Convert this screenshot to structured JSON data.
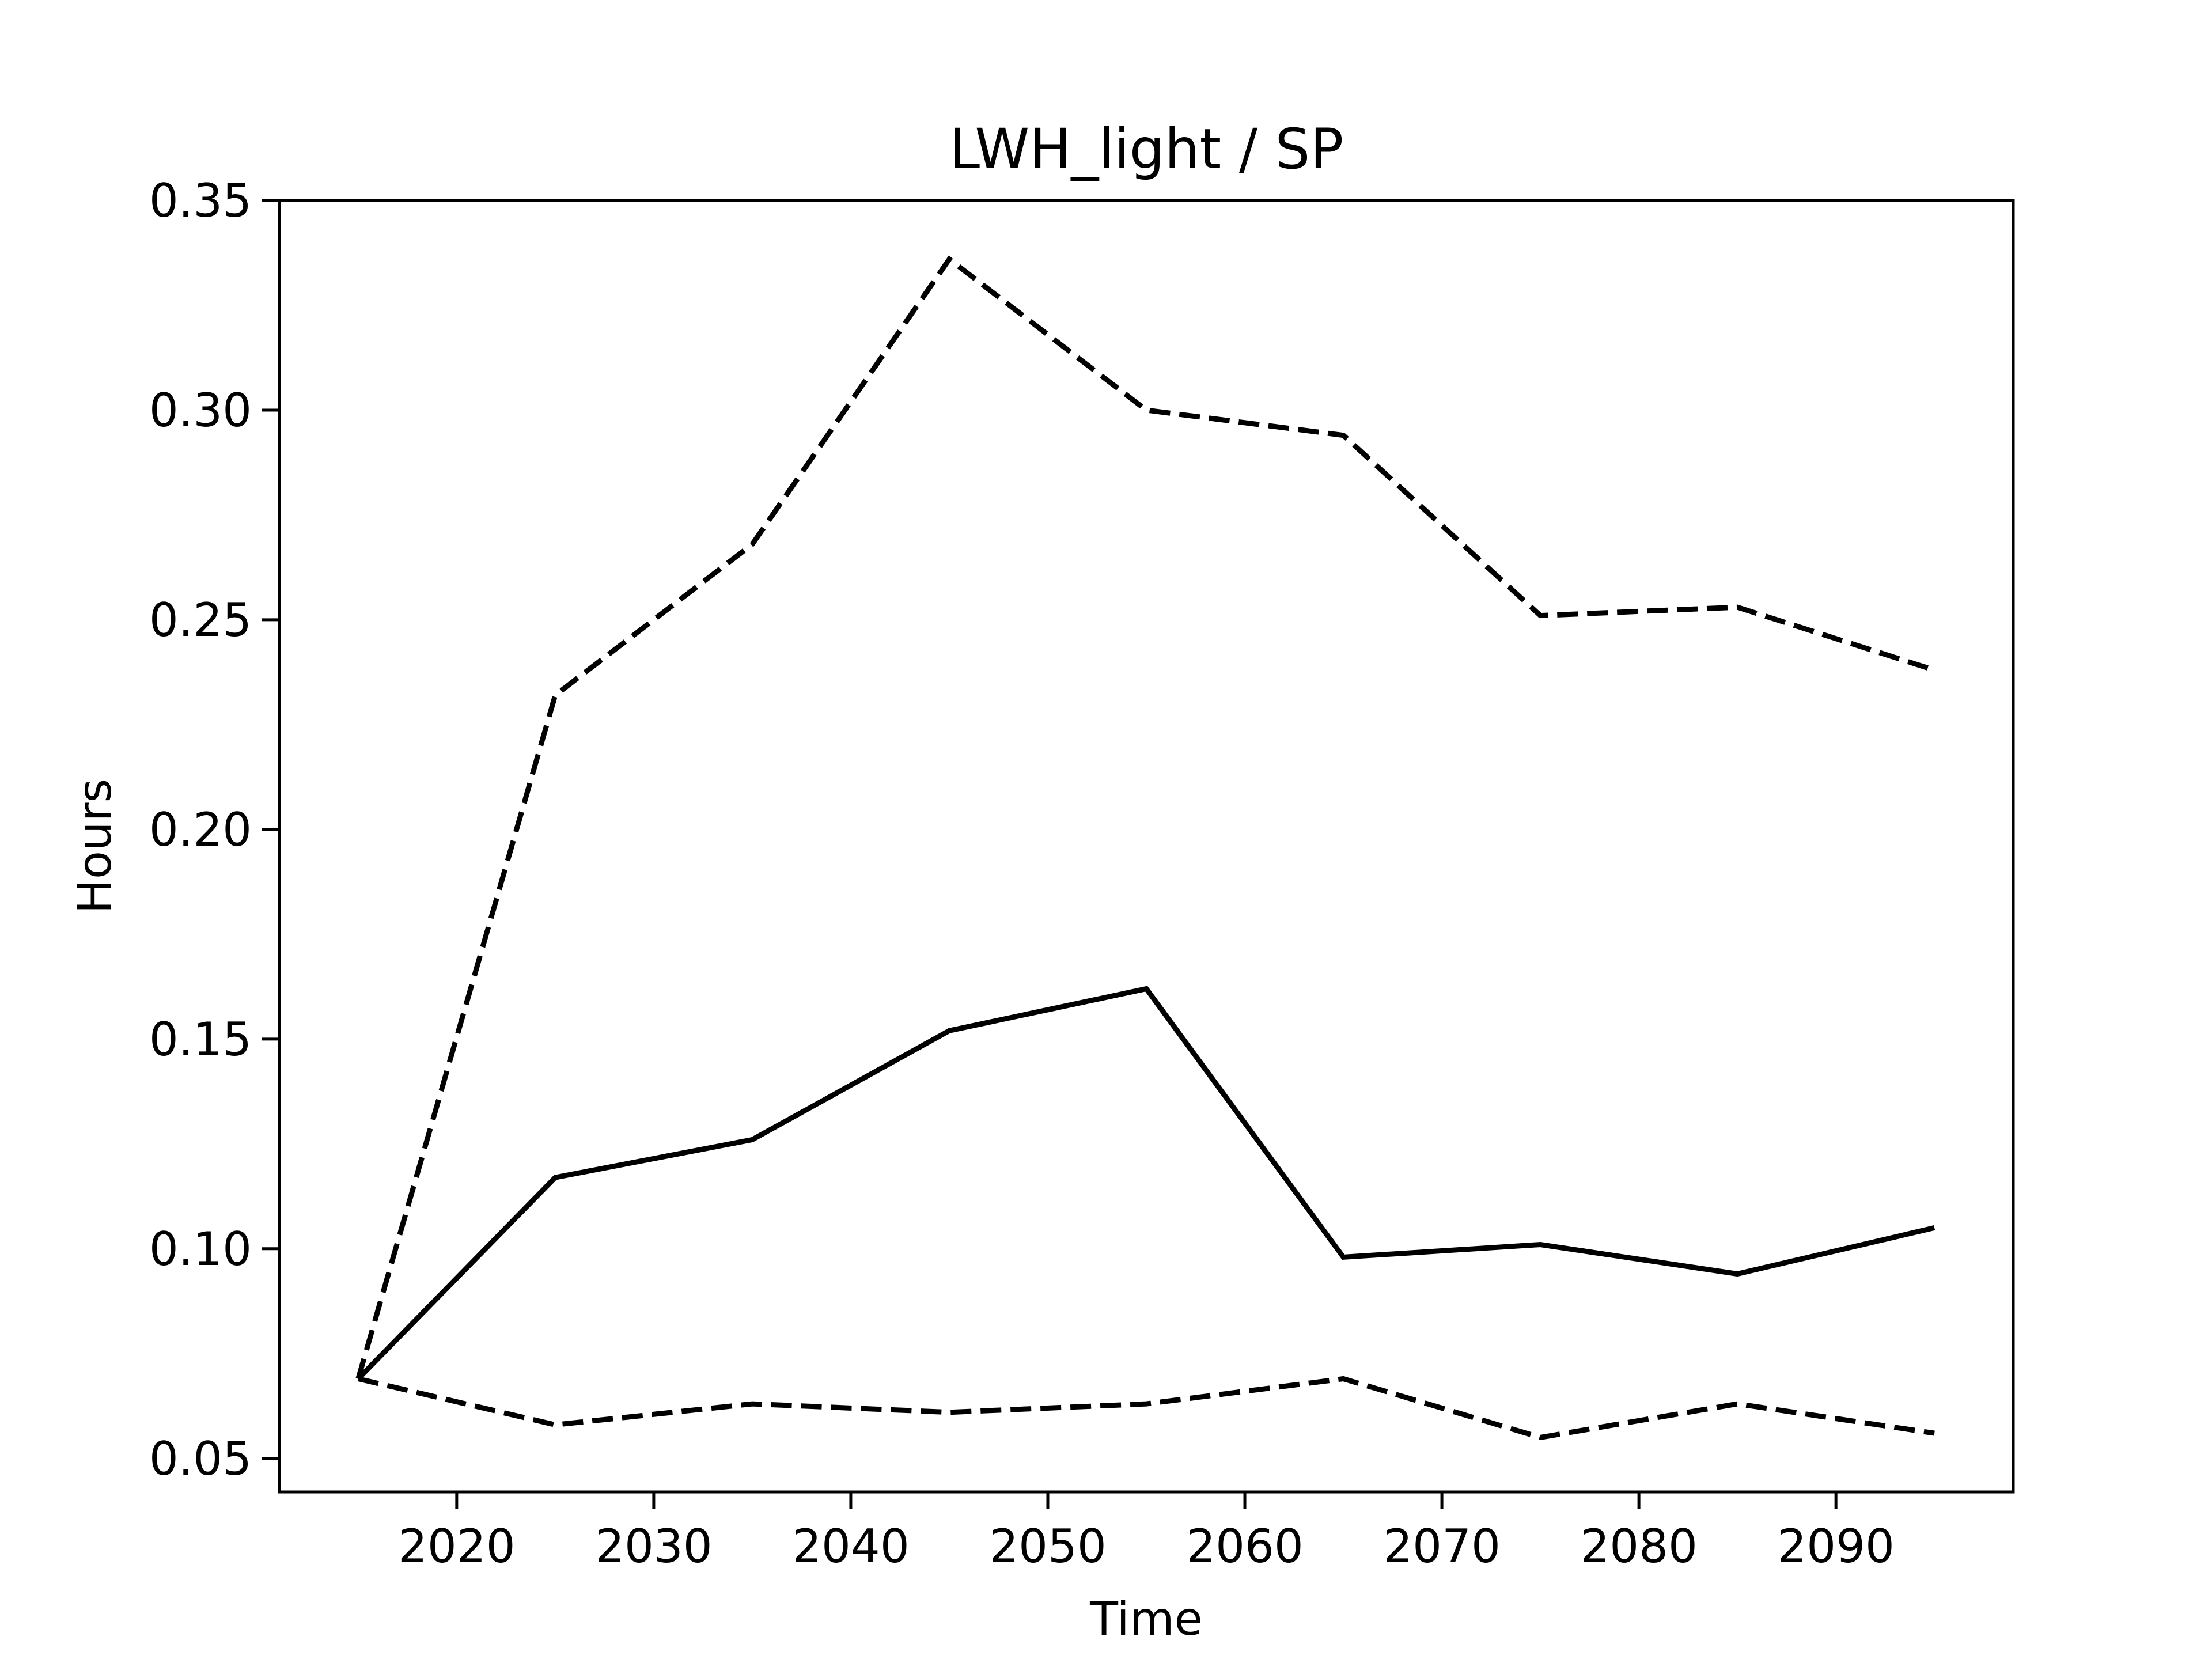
{
  "chart_data": {
    "type": "line",
    "title": "LWH_light / SP",
    "xlabel": "Time",
    "ylabel": "Hours",
    "xlim": [
      2011,
      2099
    ],
    "ylim": [
      0.042,
      0.35
    ],
    "xticks": [
      2020,
      2030,
      2040,
      2050,
      2060,
      2070,
      2080,
      2090
    ],
    "yticks": [
      0.05,
      0.1,
      0.15,
      0.2,
      0.25,
      0.3,
      0.35
    ],
    "ytick_labels": [
      "0.05",
      "0.10",
      "0.15",
      "0.20",
      "0.25",
      "0.30",
      "0.35"
    ],
    "grid": false,
    "legend": "none",
    "x": [
      2015,
      2025,
      2035,
      2045,
      2055,
      2065,
      2075,
      2085,
      2095
    ],
    "series": [
      {
        "style": "solid",
        "color": "#000000",
        "values": [
          0.069,
          0.117,
          0.126,
          0.152,
          0.162,
          0.098,
          0.101,
          0.094,
          0.105
        ]
      },
      {
        "style": "dashed",
        "color": "#000000",
        "values": [
          0.069,
          0.232,
          0.268,
          0.336,
          0.3,
          0.294,
          0.251,
          0.253,
          0.238
        ]
      },
      {
        "style": "dashed",
        "color": "#000000",
        "values": [
          0.069,
          0.058,
          0.063,
          0.061,
          0.063,
          0.069,
          0.055,
          0.063,
          0.056
        ]
      }
    ]
  }
}
